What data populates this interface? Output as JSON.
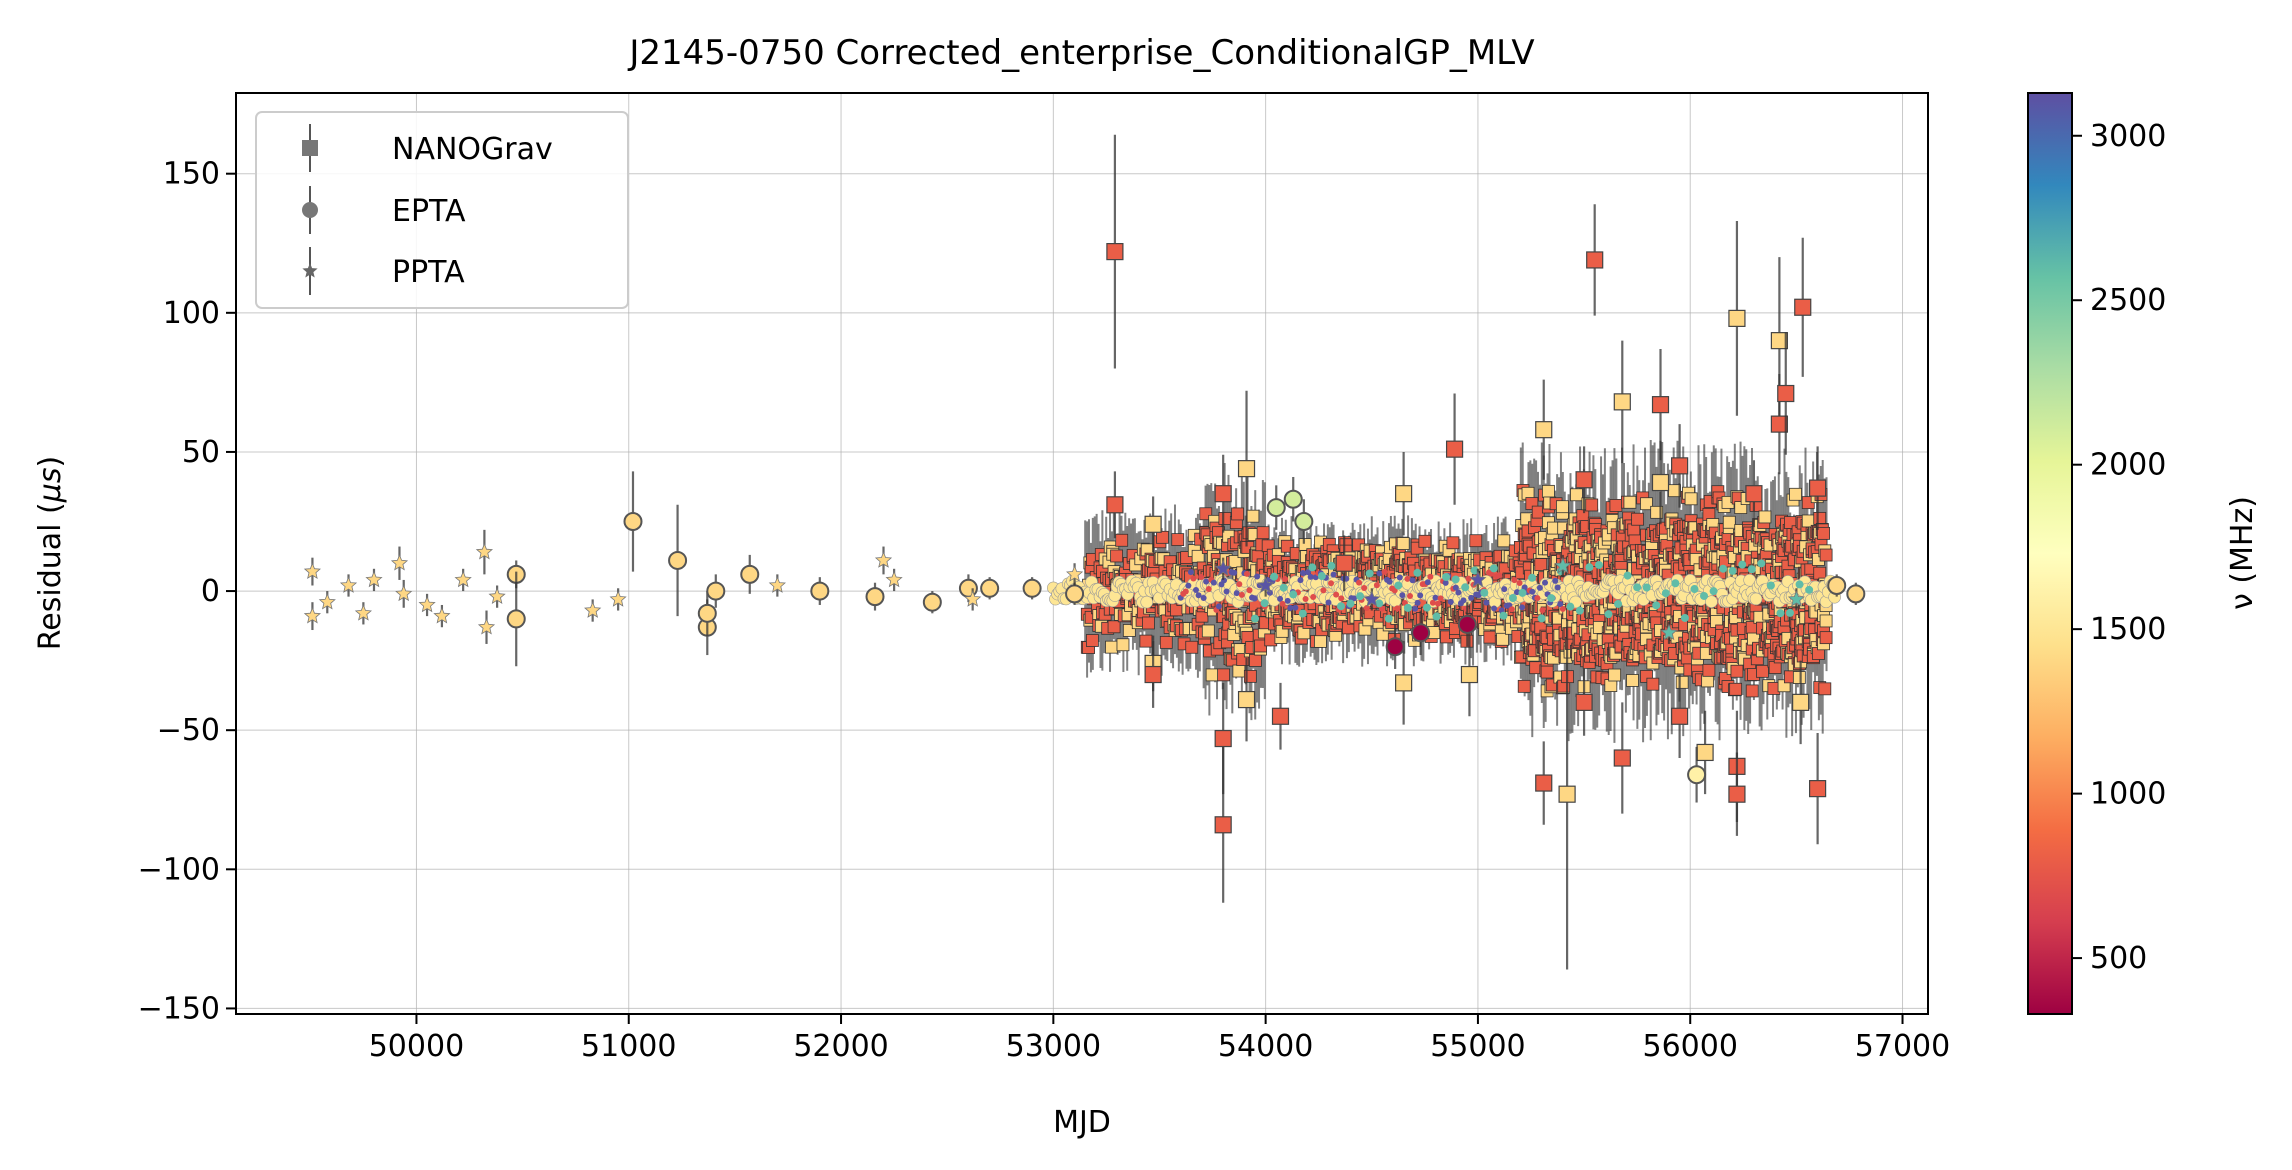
{
  "chart_data": {
    "type": "scatter",
    "title": "J2145-0750 Corrected_enterprise_ConditionalGP_MLV",
    "xlabel": "MJD",
    "ylabel": "Residual (μs)",
    "xlim": [
      49150,
      57120
    ],
    "ylim": [
      -152,
      179
    ],
    "x_ticks": [
      50000,
      51000,
      52000,
      53000,
      54000,
      55000,
      56000,
      57000
    ],
    "x_tick_labels": [
      "50000",
      "51000",
      "52000",
      "53000",
      "54000",
      "55000",
      "56000",
      "57000"
    ],
    "y_ticks": [
      -150,
      -100,
      -50,
      0,
      50,
      100,
      150
    ],
    "y_tick_labels": [
      "−150",
      "−100",
      "−50",
      "0",
      "50",
      "100",
      "150"
    ],
    "grid": true,
    "legend_position": "top-left",
    "legend": [
      {
        "label": "NANOGrav",
        "marker": "square"
      },
      {
        "label": "EPTA",
        "marker": "circle"
      },
      {
        "label": "PPTA",
        "marker": "star"
      }
    ],
    "colorbar": {
      "label": "ν (MHz)",
      "range": [
        330,
        3130
      ],
      "ticks": [
        500,
        1000,
        1500,
        2000,
        2500,
        3000
      ],
      "colormap": "Spectral",
      "colors": [
        "#9e0142",
        "#d53e4f",
        "#f46d43",
        "#fdae61",
        "#fee08b",
        "#ffffbf",
        "#e6f598",
        "#abdda4",
        "#66c2a5",
        "#3288bd",
        "#5e4fa2"
      ]
    },
    "series": [
      {
        "name": "NANOGrav",
        "marker": "square",
        "points": [
          [
            53290,
            122,
            42,
            800
          ],
          [
            53290,
            31,
            12,
            800
          ],
          [
            53470,
            24,
            10,
            1400
          ],
          [
            53470,
            -26,
            10,
            1400
          ],
          [
            53470,
            -30,
            12,
            800
          ],
          [
            53800,
            35,
            14,
            800
          ],
          [
            53800,
            -53,
            20,
            800
          ],
          [
            53800,
            -84,
            28,
            800
          ],
          [
            53910,
            44,
            28,
            1400
          ],
          [
            53910,
            -39,
            15,
            1400
          ],
          [
            54070,
            -45,
            12,
            800
          ],
          [
            54370,
            10,
            10,
            800
          ],
          [
            54650,
            35,
            15,
            1400
          ],
          [
            54650,
            -33,
            15,
            1400
          ],
          [
            54890,
            51,
            20,
            800
          ],
          [
            54960,
            -30,
            15,
            1400
          ],
          [
            55310,
            -69,
            15,
            800
          ],
          [
            55310,
            58,
            18,
            1400
          ],
          [
            55420,
            -73,
            63,
            1400
          ],
          [
            55550,
            119,
            20,
            800
          ],
          [
            55680,
            68,
            22,
            1400
          ],
          [
            55680,
            -60,
            20,
            800
          ],
          [
            55860,
            67,
            20,
            800
          ],
          [
            55860,
            39,
            15,
            1400
          ],
          [
            56070,
            -58,
            15,
            1400
          ],
          [
            56220,
            98,
            35,
            1400
          ],
          [
            56220,
            -63,
            20,
            800
          ],
          [
            56220,
            -73,
            15,
            800
          ],
          [
            56420,
            90,
            30,
            1400
          ],
          [
            56420,
            60,
            18,
            800
          ],
          [
            56450,
            71,
            22,
            800
          ],
          [
            56530,
            102,
            25,
            800
          ],
          [
            56600,
            -71,
            20,
            800
          ],
          [
            56600,
            37,
            15,
            800
          ],
          [
            56520,
            -40,
            15,
            1400
          ],
          [
            55500,
            40,
            12,
            800
          ],
          [
            55500,
            -40,
            12,
            800
          ],
          [
            55950,
            45,
            15,
            800
          ],
          [
            55950,
            -45,
            15,
            800
          ],
          [
            56300,
            35,
            12,
            800
          ]
        ]
      },
      {
        "name": "EPTA",
        "marker": "circle",
        "points": [
          [
            50470,
            6,
            5,
            1400
          ],
          [
            50470,
            -10,
            17,
            1400
          ],
          [
            51020,
            25,
            18,
            1400
          ],
          [
            51230,
            11,
            20,
            1400
          ],
          [
            51370,
            -13,
            10,
            1400
          ],
          [
            51370,
            -8,
            8,
            1400
          ],
          [
            51410,
            0,
            6,
            1400
          ],
          [
            51570,
            6,
            7,
            1400
          ],
          [
            51900,
            0,
            5,
            1400
          ],
          [
            52160,
            -2,
            5,
            1400
          ],
          [
            52430,
            -4,
            4,
            1400
          ],
          [
            52600,
            1,
            5,
            1400
          ],
          [
            52700,
            1,
            4,
            1400
          ],
          [
            52900,
            1,
            4,
            1400
          ],
          [
            53100,
            -1,
            4,
            1400
          ],
          [
            54050,
            30,
            8,
            2100
          ],
          [
            54130,
            33,
            8,
            2100
          ],
          [
            54180,
            25,
            8,
            2100
          ],
          [
            54610,
            -20,
            8,
            330
          ],
          [
            54730,
            -15,
            8,
            330
          ],
          [
            54950,
            -12,
            8,
            330
          ],
          [
            56030,
            -66,
            10,
            1600
          ],
          [
            56780,
            -1,
            4,
            1400
          ],
          [
            56690,
            2,
            4,
            1400
          ]
        ]
      },
      {
        "name": "PPTA",
        "marker": "star",
        "points": [
          [
            49510,
            7,
            5,
            1400
          ],
          [
            49510,
            -9,
            5,
            1400
          ],
          [
            49580,
            -4,
            4,
            1400
          ],
          [
            49680,
            2,
            4,
            1400
          ],
          [
            49750,
            -8,
            4,
            1400
          ],
          [
            49800,
            4,
            4,
            1400
          ],
          [
            49920,
            10,
            6,
            1400
          ],
          [
            49940,
            -1,
            5,
            1400
          ],
          [
            50050,
            -5,
            4,
            1400
          ],
          [
            50120,
            -9,
            4,
            1400
          ],
          [
            50220,
            4,
            4,
            1400
          ],
          [
            50320,
            14,
            8,
            1400
          ],
          [
            50330,
            -13,
            6,
            1400
          ],
          [
            50380,
            -2,
            4,
            1400
          ],
          [
            50830,
            -7,
            4,
            1400
          ],
          [
            50950,
            -3,
            4,
            1400
          ],
          [
            51700,
            2,
            4,
            1400
          ],
          [
            52200,
            11,
            5,
            1400
          ],
          [
            52250,
            4,
            4,
            1400
          ],
          [
            52620,
            -3,
            4,
            1400
          ],
          [
            53100,
            6,
            4,
            1400
          ],
          [
            53800,
            8,
            4,
            3100
          ],
          [
            54000,
            2,
            4,
            3100
          ],
          [
            54500,
            -3,
            4,
            3100
          ],
          [
            55000,
            4,
            4,
            3100
          ],
          [
            55400,
            9,
            4,
            2600
          ],
          [
            55900,
            -15,
            4,
            2600
          ],
          [
            56500,
            -3,
            4,
            2600
          ]
        ]
      }
    ],
    "dense_region_note": ""
  }
}
